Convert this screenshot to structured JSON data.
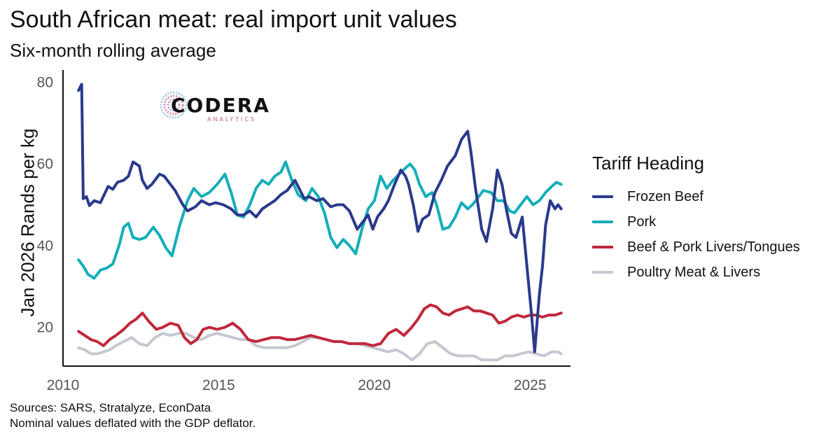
{
  "header": {
    "title": "South African meat: real import unit values",
    "subtitle": "Six-month rolling average"
  },
  "logo": {
    "name": "CODERA",
    "sub": "ANALYTICS"
  },
  "footer": {
    "source": "Sources: SARS, Stratalyze, EconData",
    "note": "Nominal values deflated with the GDP deflator."
  },
  "colors": {
    "frozen_beef": "#2a3a8c",
    "pork": "#14aeb8",
    "livers": "#c0283c",
    "poultry": "#c4c8d0"
  },
  "chart_data": {
    "type": "line",
    "title": "South African meat: real import unit values",
    "subtitle": "Six-month rolling average",
    "xlabel": "",
    "ylabel": "Jan 2026 Rands per kg",
    "xlim": [
      2010,
      2026.3
    ],
    "ylim": [
      10.5,
      83
    ],
    "x_ticks": [
      2010,
      2015,
      2020,
      2025
    ],
    "y_ticks": [
      20,
      40,
      60,
      80
    ],
    "grid": false,
    "legend_title": "Tariff Heading",
    "legend_position": "right",
    "series": [
      {
        "name": "Frozen Beef",
        "color": "#2a3a8c",
        "x": [
          2010.5,
          2010.6,
          2010.65,
          2010.75,
          2010.85,
          2011.0,
          2011.2,
          2011.45,
          2011.6,
          2011.75,
          2011.95,
          2012.1,
          2012.25,
          2012.45,
          2012.55,
          2012.7,
          2012.85,
          2013.1,
          2013.25,
          2013.45,
          2013.6,
          2013.85,
          2014.0,
          2014.25,
          2014.45,
          2014.7,
          2014.9,
          2015.15,
          2015.4,
          2015.6,
          2015.8,
          2016.0,
          2016.2,
          2016.4,
          2016.6,
          2016.8,
          2017.0,
          2017.2,
          2017.45,
          2017.75,
          2017.9,
          2018.15,
          2018.35,
          2018.6,
          2018.8,
          2019.0,
          2019.2,
          2019.45,
          2019.65,
          2019.8,
          2019.95,
          2020.1,
          2020.3,
          2020.45,
          2020.65,
          2020.85,
          2021.0,
          2021.1,
          2021.25,
          2021.4,
          2021.55,
          2021.75,
          2021.95,
          2022.15,
          2022.35,
          2022.6,
          2022.8,
          2023.0,
          2023.1,
          2023.25,
          2023.45,
          2023.6,
          2023.8,
          2023.95,
          2024.1,
          2024.25,
          2024.4,
          2024.55,
          2024.75,
          2024.9,
          2025.05,
          2025.15,
          2025.3,
          2025.4,
          2025.5,
          2025.65,
          2025.8,
          2025.9,
          2026.0
        ],
        "values": [
          78,
          79.5,
          51.5,
          52,
          49.8,
          51,
          50.5,
          54.5,
          53.8,
          55.5,
          56,
          57,
          60.5,
          59.5,
          56,
          54,
          55,
          57.5,
          57,
          55,
          53.5,
          50,
          48.5,
          49.5,
          51,
          50,
          50.5,
          50,
          49,
          47.5,
          47.5,
          48.5,
          47,
          49,
          50,
          51,
          52.5,
          53.5,
          56,
          51.5,
          52,
          51,
          51.5,
          49.5,
          50,
          50,
          48.5,
          44,
          46,
          47.5,
          44,
          47,
          49,
          51,
          55,
          58.5,
          57,
          55,
          50,
          43.5,
          46.5,
          47.5,
          53,
          56,
          59.5,
          62,
          66,
          68,
          63,
          54,
          44,
          41,
          49,
          58.5,
          55,
          48.5,
          43,
          42,
          47,
          35,
          23,
          14,
          28,
          35,
          45,
          51,
          49,
          50,
          49
        ]
      },
      {
        "name": "Pork",
        "color": "#14aeb8",
        "x": [
          2010.5,
          2010.65,
          2010.8,
          2011.0,
          2011.2,
          2011.4,
          2011.6,
          2011.8,
          2011.95,
          2012.1,
          2012.25,
          2012.45,
          2012.65,
          2012.9,
          2013.1,
          2013.3,
          2013.5,
          2013.75,
          2014.0,
          2014.2,
          2014.45,
          2014.7,
          2014.95,
          2015.2,
          2015.4,
          2015.6,
          2015.8,
          2016.0,
          2016.2,
          2016.4,
          2016.6,
          2016.8,
          2017.0,
          2017.15,
          2017.35,
          2017.55,
          2017.8,
          2018.0,
          2018.2,
          2018.4,
          2018.6,
          2018.8,
          2019.0,
          2019.2,
          2019.4,
          2019.6,
          2019.8,
          2020.0,
          2020.2,
          2020.4,
          2020.6,
          2020.8,
          2021.0,
          2021.15,
          2021.3,
          2021.45,
          2021.65,
          2021.85,
          2022.0,
          2022.2,
          2022.4,
          2022.6,
          2022.8,
          2023.0,
          2023.15,
          2023.3,
          2023.5,
          2023.75,
          2023.95,
          2024.15,
          2024.35,
          2024.5,
          2024.7,
          2024.9,
          2025.1,
          2025.3,
          2025.5,
          2025.7,
          2025.85,
          2026.0
        ],
        "values": [
          36.5,
          35,
          33,
          32,
          34,
          34.5,
          35.5,
          40,
          44.5,
          45.5,
          42,
          41.5,
          42,
          44.5,
          42.5,
          39.5,
          37.5,
          45,
          51,
          54,
          52,
          53,
          55,
          57.5,
          53,
          47.5,
          47,
          50,
          54,
          56,
          55,
          57,
          58,
          60.5,
          56,
          52.5,
          51,
          54,
          52,
          48,
          42,
          39.5,
          41.5,
          40,
          38,
          44,
          49,
          51,
          57,
          54,
          56,
          57.5,
          59,
          60,
          58.5,
          55,
          52,
          53,
          50,
          44,
          44.5,
          47,
          50.5,
          49,
          50,
          51.5,
          53.5,
          53,
          51,
          51,
          48.5,
          48,
          50,
          52,
          50,
          51,
          53,
          54.5,
          55.5,
          55
        ]
      },
      {
        "name": "Beef & Pork Livers/Tongues",
        "color": "#c0283c",
        "x": [
          2010.5,
          2010.7,
          2010.9,
          2011.1,
          2011.3,
          2011.5,
          2011.7,
          2011.95,
          2012.15,
          2012.35,
          2012.55,
          2012.75,
          2013.0,
          2013.2,
          2013.45,
          2013.7,
          2013.9,
          2014.1,
          2014.3,
          2014.5,
          2014.7,
          2014.95,
          2015.2,
          2015.45,
          2015.7,
          2015.95,
          2016.2,
          2016.45,
          2016.7,
          2016.95,
          2017.2,
          2017.45,
          2017.7,
          2017.95,
          2018.2,
          2018.45,
          2018.7,
          2018.95,
          2019.2,
          2019.45,
          2019.7,
          2019.95,
          2020.2,
          2020.45,
          2020.7,
          2020.95,
          2021.2,
          2021.4,
          2021.6,
          2021.8,
          2022.0,
          2022.2,
          2022.4,
          2022.6,
          2022.8,
          2023.0,
          2023.2,
          2023.4,
          2023.6,
          2023.8,
          2024.0,
          2024.2,
          2024.4,
          2024.6,
          2024.8,
          2025.0,
          2025.2,
          2025.4,
          2025.6,
          2025.8,
          2026.0
        ],
        "values": [
          19,
          18,
          17,
          16.5,
          15.5,
          17,
          18,
          19.5,
          21,
          22,
          23.5,
          21.5,
          19.5,
          20,
          21,
          20.5,
          17.5,
          16,
          17,
          19.5,
          20,
          19.5,
          20,
          21,
          19.5,
          17,
          16.5,
          17,
          17.5,
          17.5,
          17,
          17,
          17.5,
          18,
          17.5,
          17,
          16.5,
          16.5,
          16,
          16,
          16,
          15.5,
          16,
          18.5,
          19.5,
          18,
          20,
          22,
          24.5,
          25.5,
          25,
          23.5,
          23,
          24,
          24.5,
          25,
          24,
          24,
          23.5,
          23,
          21,
          21.5,
          22.5,
          23,
          22.5,
          23,
          23,
          22.5,
          23,
          23,
          23.5
        ]
      },
      {
        "name": "Poultry Meat & Livers",
        "color": "#c4c8d0",
        "x": [
          2010.5,
          2010.7,
          2010.9,
          2011.1,
          2011.3,
          2011.5,
          2011.7,
          2011.95,
          2012.2,
          2012.45,
          2012.7,
          2012.95,
          2013.2,
          2013.45,
          2013.7,
          2013.95,
          2014.2,
          2014.45,
          2014.7,
          2014.95,
          2015.2,
          2015.45,
          2015.7,
          2015.95,
          2016.2,
          2016.45,
          2016.7,
          2016.95,
          2017.2,
          2017.45,
          2017.7,
          2017.95,
          2018.2,
          2018.45,
          2018.7,
          2018.95,
          2019.2,
          2019.45,
          2019.7,
          2019.95,
          2020.2,
          2020.45,
          2020.7,
          2020.95,
          2021.2,
          2021.45,
          2021.7,
          2021.95,
          2022.2,
          2022.45,
          2022.7,
          2022.95,
          2023.2,
          2023.45,
          2023.7,
          2023.95,
          2024.2,
          2024.45,
          2024.7,
          2024.95,
          2025.2,
          2025.45,
          2025.7,
          2025.9,
          2026.0
        ],
        "values": [
          15,
          14.5,
          13.5,
          13.5,
          14,
          14.5,
          15.5,
          16.5,
          17.5,
          16,
          15.5,
          17.5,
          18.5,
          18,
          18.5,
          18.5,
          17.5,
          17,
          18,
          18.5,
          18,
          17.5,
          17,
          17,
          15.5,
          15,
          15,
          15,
          15,
          15.5,
          16.5,
          17.5,
          17.5,
          17,
          16.5,
          16.5,
          16,
          16,
          15.5,
          15,
          14.5,
          14,
          14.5,
          13.5,
          12,
          13.5,
          16,
          16.5,
          15,
          13.5,
          13,
          13,
          13,
          12,
          12,
          12,
          13,
          13,
          13.5,
          14,
          13.5,
          13,
          14,
          14,
          13.5
        ]
      }
    ]
  }
}
